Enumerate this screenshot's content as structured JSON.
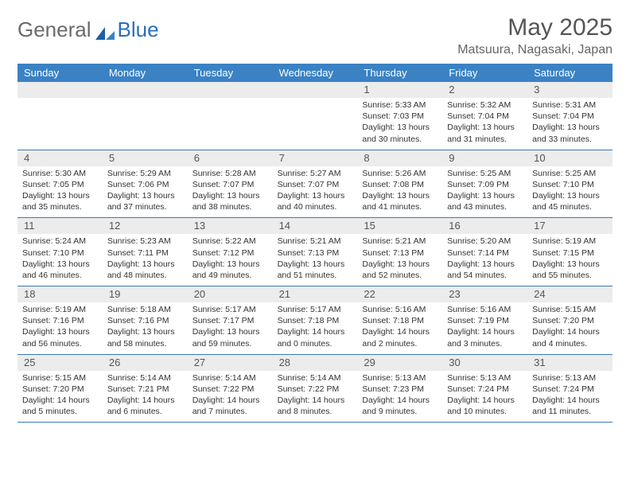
{
  "logo": {
    "part1": "General",
    "part2": "Blue"
  },
  "title": "May 2025",
  "location": "Matsuura, Nagasaki, Japan",
  "colors": {
    "header_bg": "#3a82c4",
    "header_text": "#ffffff",
    "numbar_bg": "#ececec",
    "row_border": "#3a7ab5",
    "text": "#333333",
    "title_text": "#555555"
  },
  "days_of_week": [
    "Sunday",
    "Monday",
    "Tuesday",
    "Wednesday",
    "Thursday",
    "Friday",
    "Saturday"
  ],
  "weeks": [
    [
      {
        "n": "",
        "sr": "",
        "ss": "",
        "dl": ""
      },
      {
        "n": "",
        "sr": "",
        "ss": "",
        "dl": ""
      },
      {
        "n": "",
        "sr": "",
        "ss": "",
        "dl": ""
      },
      {
        "n": "",
        "sr": "",
        "ss": "",
        "dl": ""
      },
      {
        "n": "1",
        "sr": "Sunrise: 5:33 AM",
        "ss": "Sunset: 7:03 PM",
        "dl": "Daylight: 13 hours and 30 minutes."
      },
      {
        "n": "2",
        "sr": "Sunrise: 5:32 AM",
        "ss": "Sunset: 7:04 PM",
        "dl": "Daylight: 13 hours and 31 minutes."
      },
      {
        "n": "3",
        "sr": "Sunrise: 5:31 AM",
        "ss": "Sunset: 7:04 PM",
        "dl": "Daylight: 13 hours and 33 minutes."
      }
    ],
    [
      {
        "n": "4",
        "sr": "Sunrise: 5:30 AM",
        "ss": "Sunset: 7:05 PM",
        "dl": "Daylight: 13 hours and 35 minutes."
      },
      {
        "n": "5",
        "sr": "Sunrise: 5:29 AM",
        "ss": "Sunset: 7:06 PM",
        "dl": "Daylight: 13 hours and 37 minutes."
      },
      {
        "n": "6",
        "sr": "Sunrise: 5:28 AM",
        "ss": "Sunset: 7:07 PM",
        "dl": "Daylight: 13 hours and 38 minutes."
      },
      {
        "n": "7",
        "sr": "Sunrise: 5:27 AM",
        "ss": "Sunset: 7:07 PM",
        "dl": "Daylight: 13 hours and 40 minutes."
      },
      {
        "n": "8",
        "sr": "Sunrise: 5:26 AM",
        "ss": "Sunset: 7:08 PM",
        "dl": "Daylight: 13 hours and 41 minutes."
      },
      {
        "n": "9",
        "sr": "Sunrise: 5:25 AM",
        "ss": "Sunset: 7:09 PM",
        "dl": "Daylight: 13 hours and 43 minutes."
      },
      {
        "n": "10",
        "sr": "Sunrise: 5:25 AM",
        "ss": "Sunset: 7:10 PM",
        "dl": "Daylight: 13 hours and 45 minutes."
      }
    ],
    [
      {
        "n": "11",
        "sr": "Sunrise: 5:24 AM",
        "ss": "Sunset: 7:10 PM",
        "dl": "Daylight: 13 hours and 46 minutes."
      },
      {
        "n": "12",
        "sr": "Sunrise: 5:23 AM",
        "ss": "Sunset: 7:11 PM",
        "dl": "Daylight: 13 hours and 48 minutes."
      },
      {
        "n": "13",
        "sr": "Sunrise: 5:22 AM",
        "ss": "Sunset: 7:12 PM",
        "dl": "Daylight: 13 hours and 49 minutes."
      },
      {
        "n": "14",
        "sr": "Sunrise: 5:21 AM",
        "ss": "Sunset: 7:13 PM",
        "dl": "Daylight: 13 hours and 51 minutes."
      },
      {
        "n": "15",
        "sr": "Sunrise: 5:21 AM",
        "ss": "Sunset: 7:13 PM",
        "dl": "Daylight: 13 hours and 52 minutes."
      },
      {
        "n": "16",
        "sr": "Sunrise: 5:20 AM",
        "ss": "Sunset: 7:14 PM",
        "dl": "Daylight: 13 hours and 54 minutes."
      },
      {
        "n": "17",
        "sr": "Sunrise: 5:19 AM",
        "ss": "Sunset: 7:15 PM",
        "dl": "Daylight: 13 hours and 55 minutes."
      }
    ],
    [
      {
        "n": "18",
        "sr": "Sunrise: 5:19 AM",
        "ss": "Sunset: 7:16 PM",
        "dl": "Daylight: 13 hours and 56 minutes."
      },
      {
        "n": "19",
        "sr": "Sunrise: 5:18 AM",
        "ss": "Sunset: 7:16 PM",
        "dl": "Daylight: 13 hours and 58 minutes."
      },
      {
        "n": "20",
        "sr": "Sunrise: 5:17 AM",
        "ss": "Sunset: 7:17 PM",
        "dl": "Daylight: 13 hours and 59 minutes."
      },
      {
        "n": "21",
        "sr": "Sunrise: 5:17 AM",
        "ss": "Sunset: 7:18 PM",
        "dl": "Daylight: 14 hours and 0 minutes."
      },
      {
        "n": "22",
        "sr": "Sunrise: 5:16 AM",
        "ss": "Sunset: 7:18 PM",
        "dl": "Daylight: 14 hours and 2 minutes."
      },
      {
        "n": "23",
        "sr": "Sunrise: 5:16 AM",
        "ss": "Sunset: 7:19 PM",
        "dl": "Daylight: 14 hours and 3 minutes."
      },
      {
        "n": "24",
        "sr": "Sunrise: 5:15 AM",
        "ss": "Sunset: 7:20 PM",
        "dl": "Daylight: 14 hours and 4 minutes."
      }
    ],
    [
      {
        "n": "25",
        "sr": "Sunrise: 5:15 AM",
        "ss": "Sunset: 7:20 PM",
        "dl": "Daylight: 14 hours and 5 minutes."
      },
      {
        "n": "26",
        "sr": "Sunrise: 5:14 AM",
        "ss": "Sunset: 7:21 PM",
        "dl": "Daylight: 14 hours and 6 minutes."
      },
      {
        "n": "27",
        "sr": "Sunrise: 5:14 AM",
        "ss": "Sunset: 7:22 PM",
        "dl": "Daylight: 14 hours and 7 minutes."
      },
      {
        "n": "28",
        "sr": "Sunrise: 5:14 AM",
        "ss": "Sunset: 7:22 PM",
        "dl": "Daylight: 14 hours and 8 minutes."
      },
      {
        "n": "29",
        "sr": "Sunrise: 5:13 AM",
        "ss": "Sunset: 7:23 PM",
        "dl": "Daylight: 14 hours and 9 minutes."
      },
      {
        "n": "30",
        "sr": "Sunrise: 5:13 AM",
        "ss": "Sunset: 7:24 PM",
        "dl": "Daylight: 14 hours and 10 minutes."
      },
      {
        "n": "31",
        "sr": "Sunrise: 5:13 AM",
        "ss": "Sunset: 7:24 PM",
        "dl": "Daylight: 14 hours and 11 minutes."
      }
    ]
  ]
}
